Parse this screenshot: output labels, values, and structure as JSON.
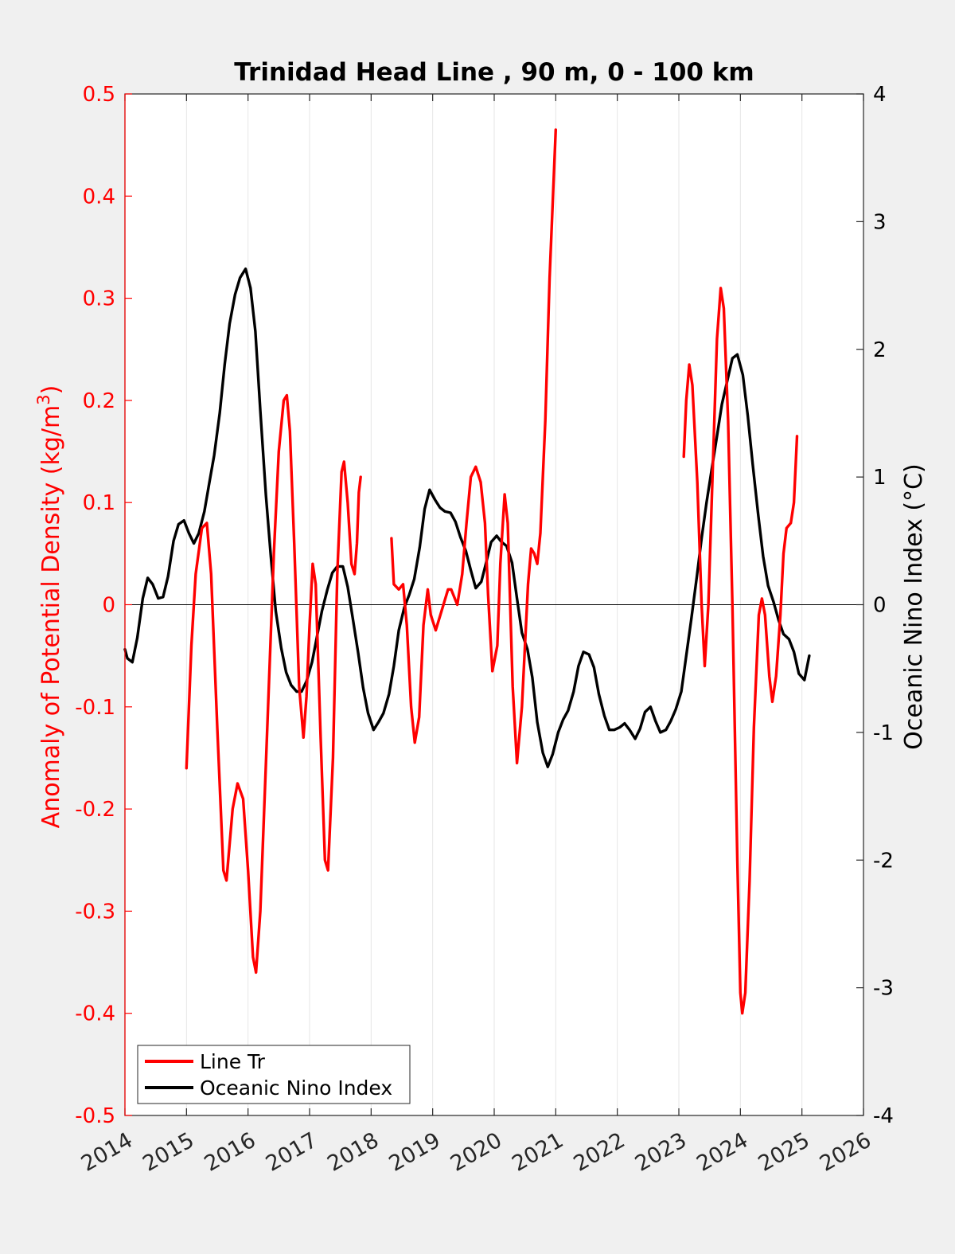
{
  "chart_data": {
    "type": "line",
    "title": "Trinidad Head Line , 90 m, 0 - 100 km",
    "ylabel_left": "Anomaly of Potential Density (kg/m",
    "ylabel_left_sup": "3",
    "ylabel_left_close": ")",
    "ylabel_right": "Oceanic Nino Index (°C)",
    "xlim": [
      2014,
      2026
    ],
    "ylim_left": [
      -0.5,
      0.5
    ],
    "ylim_right": [
      -4,
      4
    ],
    "x_ticks": [
      "2014",
      "2015",
      "2016",
      "2017",
      "2018",
      "2019",
      "2020",
      "2021",
      "2022",
      "2023",
      "2024",
      "2025",
      "2026"
    ],
    "y_ticks_left": [
      "0.5",
      "0.4",
      "0.3",
      "0.2",
      "0.1",
      "0",
      "-0.1",
      "-0.2",
      "-0.3",
      "-0.4",
      "-0.5"
    ],
    "y_ticks_right": [
      "4",
      "3",
      "2",
      "1",
      "0",
      "-1",
      "-2",
      "-3",
      "-4"
    ],
    "grid": "vertical",
    "legend_position": "bottom-left",
    "colors": {
      "line_tr": "#ff0000",
      "oni": "#000000",
      "left_axis": "#ff0000",
      "right_axis": "#000000"
    },
    "series": [
      {
        "name": "Line Tr",
        "axis": "left",
        "segments": [
          [
            [
              2015.0,
              -0.16
            ],
            [
              2015.08,
              -0.04
            ],
            [
              2015.15,
              0.03
            ],
            [
              2015.25,
              0.075
            ],
            [
              2015.33,
              0.08
            ],
            [
              2015.4,
              0.03
            ],
            [
              2015.5,
              -0.12
            ],
            [
              2015.6,
              -0.26
            ],
            [
              2015.65,
              -0.27
            ],
            [
              2015.75,
              -0.2
            ],
            [
              2015.83,
              -0.175
            ],
            [
              2015.92,
              -0.19
            ],
            [
              2016.0,
              -0.26
            ],
            [
              2016.08,
              -0.345
            ],
            [
              2016.13,
              -0.36
            ],
            [
              2016.2,
              -0.3
            ],
            [
              2016.3,
              -0.14
            ],
            [
              2016.42,
              0.05
            ],
            [
              2016.5,
              0.15
            ],
            [
              2016.58,
              0.2
            ],
            [
              2016.63,
              0.205
            ],
            [
              2016.68,
              0.17
            ],
            [
              2016.75,
              0.06
            ],
            [
              2016.83,
              -0.08
            ],
            [
              2016.9,
              -0.13
            ],
            [
              2016.95,
              -0.09
            ],
            [
              2017.0,
              -0.02
            ],
            [
              2017.05,
              0.04
            ],
            [
              2017.1,
              0.02
            ],
            [
              2017.18,
              -0.13
            ],
            [
              2017.25,
              -0.25
            ],
            [
              2017.3,
              -0.26
            ],
            [
              2017.38,
              -0.15
            ],
            [
              2017.45,
              0.03
            ],
            [
              2017.52,
              0.13
            ],
            [
              2017.56,
              0.14
            ],
            [
              2017.62,
              0.1
            ],
            [
              2017.68,
              0.04
            ],
            [
              2017.73,
              0.03
            ],
            [
              2017.77,
              0.06
            ],
            [
              2017.8,
              0.11
            ],
            [
              2017.83,
              0.125
            ]
          ],
          [
            [
              2018.33,
              0.065
            ],
            [
              2018.37,
              0.02
            ],
            [
              2018.45,
              0.015
            ],
            [
              2018.52,
              0.02
            ],
            [
              2018.58,
              -0.02
            ],
            [
              2018.65,
              -0.1
            ],
            [
              2018.71,
              -0.135
            ],
            [
              2018.78,
              -0.11
            ],
            [
              2018.85,
              -0.02
            ],
            [
              2018.92,
              0.015
            ],
            [
              2018.97,
              -0.01
            ],
            [
              2019.05,
              -0.025
            ],
            [
              2019.15,
              -0.005
            ],
            [
              2019.25,
              0.015
            ],
            [
              2019.3,
              0.015
            ],
            [
              2019.4,
              0.0
            ],
            [
              2019.48,
              0.03
            ],
            [
              2019.55,
              0.08
            ],
            [
              2019.62,
              0.125
            ],
            [
              2019.7,
              0.135
            ],
            [
              2019.78,
              0.12
            ],
            [
              2019.85,
              0.08
            ],
            [
              2019.9,
              0.01
            ],
            [
              2019.97,
              -0.065
            ],
            [
              2020.05,
              -0.04
            ],
            [
              2020.1,
              0.04
            ],
            [
              2020.17,
              0.108
            ],
            [
              2020.22,
              0.08
            ],
            [
              2020.3,
              -0.08
            ],
            [
              2020.37,
              -0.155
            ],
            [
              2020.45,
              -0.1
            ],
            [
              2020.55,
              0.02
            ],
            [
              2020.6,
              0.055
            ],
            [
              2020.65,
              0.05
            ],
            [
              2020.7,
              0.04
            ],
            [
              2020.75,
              0.07
            ],
            [
              2020.83,
              0.18
            ],
            [
              2020.9,
              0.32
            ],
            [
              2021.0,
              0.465
            ]
          ],
          [
            [
              2023.08,
              0.145
            ],
            [
              2023.12,
              0.2
            ],
            [
              2023.17,
              0.235
            ],
            [
              2023.22,
              0.215
            ],
            [
              2023.3,
              0.12
            ],
            [
              2023.37,
              0.0
            ],
            [
              2023.42,
              -0.06
            ],
            [
              2023.48,
              0.0
            ],
            [
              2023.55,
              0.13
            ],
            [
              2023.62,
              0.26
            ],
            [
              2023.68,
              0.31
            ],
            [
              2023.73,
              0.29
            ],
            [
              2023.8,
              0.18
            ],
            [
              2023.87,
              0.0
            ],
            [
              2023.95,
              -0.25
            ],
            [
              2024.0,
              -0.38
            ],
            [
              2024.03,
              -0.4
            ],
            [
              2024.08,
              -0.38
            ],
            [
              2024.15,
              -0.27
            ],
            [
              2024.22,
              -0.12
            ],
            [
              2024.3,
              -0.01
            ],
            [
              2024.35,
              0.006
            ],
            [
              2024.4,
              -0.01
            ],
            [
              2024.47,
              -0.07
            ],
            [
              2024.52,
              -0.095
            ],
            [
              2024.58,
              -0.07
            ],
            [
              2024.65,
              -0.01
            ],
            [
              2024.7,
              0.05
            ],
            [
              2024.75,
              0.075
            ],
            [
              2024.82,
              0.08
            ],
            [
              2024.87,
              0.1
            ],
            [
              2024.92,
              0.165
            ]
          ]
        ]
      },
      {
        "name": "Oceanic Nino Index",
        "axis": "right",
        "segments": [
          [
            [
              2014.0,
              -0.35
            ],
            [
              2014.04,
              -0.42
            ],
            [
              2014.12,
              -0.45
            ],
            [
              2014.2,
              -0.26
            ],
            [
              2014.29,
              0.05
            ],
            [
              2014.37,
              0.21
            ],
            [
              2014.45,
              0.16
            ],
            [
              2014.54,
              0.05
            ],
            [
              2014.62,
              0.06
            ],
            [
              2014.7,
              0.22
            ],
            [
              2014.79,
              0.5
            ],
            [
              2014.87,
              0.63
            ],
            [
              2014.96,
              0.66
            ],
            [
              2015.04,
              0.56
            ],
            [
              2015.12,
              0.48
            ],
            [
              2015.2,
              0.56
            ],
            [
              2015.29,
              0.73
            ],
            [
              2015.37,
              0.95
            ],
            [
              2015.45,
              1.17
            ],
            [
              2015.54,
              1.5
            ],
            [
              2015.62,
              1.88
            ],
            [
              2015.7,
              2.2
            ],
            [
              2015.79,
              2.43
            ],
            [
              2015.87,
              2.56
            ],
            [
              2015.96,
              2.63
            ],
            [
              2016.04,
              2.48
            ],
            [
              2016.12,
              2.14
            ],
            [
              2016.2,
              1.52
            ],
            [
              2016.29,
              0.86
            ],
            [
              2016.37,
              0.38
            ],
            [
              2016.45,
              -0.05
            ],
            [
              2016.54,
              -0.34
            ],
            [
              2016.62,
              -0.53
            ],
            [
              2016.7,
              -0.63
            ],
            [
              2016.79,
              -0.68
            ],
            [
              2016.87,
              -0.68
            ],
            [
              2016.95,
              -0.6
            ],
            [
              2017.04,
              -0.45
            ],
            [
              2017.12,
              -0.25
            ],
            [
              2017.2,
              -0.05
            ],
            [
              2017.29,
              0.12
            ],
            [
              2017.37,
              0.25
            ],
            [
              2017.45,
              0.3
            ],
            [
              2017.54,
              0.3
            ],
            [
              2017.62,
              0.14
            ],
            [
              2017.7,
              -0.1
            ],
            [
              2017.79,
              -0.38
            ],
            [
              2017.87,
              -0.65
            ],
            [
              2017.95,
              -0.85
            ],
            [
              2018.04,
              -0.98
            ],
            [
              2018.12,
              -0.92
            ],
            [
              2018.2,
              -0.85
            ],
            [
              2018.29,
              -0.7
            ],
            [
              2018.37,
              -0.48
            ],
            [
              2018.45,
              -0.2
            ],
            [
              2018.54,
              -0.02
            ],
            [
              2018.62,
              0.08
            ],
            [
              2018.7,
              0.2
            ],
            [
              2018.79,
              0.45
            ],
            [
              2018.87,
              0.75
            ],
            [
              2018.95,
              0.9
            ],
            [
              2019.04,
              0.82
            ],
            [
              2019.12,
              0.76
            ],
            [
              2019.2,
              0.73
            ],
            [
              2019.29,
              0.72
            ],
            [
              2019.37,
              0.65
            ],
            [
              2019.45,
              0.53
            ],
            [
              2019.54,
              0.42
            ],
            [
              2019.62,
              0.27
            ],
            [
              2019.7,
              0.13
            ],
            [
              2019.79,
              0.18
            ],
            [
              2019.87,
              0.33
            ],
            [
              2019.95,
              0.49
            ],
            [
              2020.04,
              0.54
            ],
            [
              2020.12,
              0.49
            ],
            [
              2020.2,
              0.46
            ],
            [
              2020.29,
              0.33
            ],
            [
              2020.37,
              0.05
            ],
            [
              2020.45,
              -0.22
            ],
            [
              2020.54,
              -0.35
            ],
            [
              2020.62,
              -0.57
            ],
            [
              2020.7,
              -0.92
            ],
            [
              2020.79,
              -1.16
            ],
            [
              2020.87,
              -1.27
            ],
            [
              2020.95,
              -1.17
            ],
            [
              2021.04,
              -1.0
            ],
            [
              2021.12,
              -0.9
            ],
            [
              2021.2,
              -0.83
            ],
            [
              2021.29,
              -0.68
            ],
            [
              2021.37,
              -0.48
            ],
            [
              2021.45,
              -0.37
            ],
            [
              2021.54,
              -0.39
            ],
            [
              2021.62,
              -0.49
            ],
            [
              2021.7,
              -0.7
            ],
            [
              2021.79,
              -0.87
            ],
            [
              2021.87,
              -0.98
            ],
            [
              2021.95,
              -0.98
            ],
            [
              2022.04,
              -0.96
            ],
            [
              2022.12,
              -0.93
            ],
            [
              2022.2,
              -0.98
            ],
            [
              2022.29,
              -1.05
            ],
            [
              2022.37,
              -0.97
            ],
            [
              2022.45,
              -0.84
            ],
            [
              2022.54,
              -0.8
            ],
            [
              2022.62,
              -0.91
            ],
            [
              2022.7,
              -1.0
            ],
            [
              2022.79,
              -0.98
            ],
            [
              2022.87,
              -0.91
            ],
            [
              2022.95,
              -0.82
            ],
            [
              2023.04,
              -0.68
            ],
            [
              2023.12,
              -0.4
            ],
            [
              2023.2,
              -0.12
            ],
            [
              2023.29,
              0.21
            ],
            [
              2023.37,
              0.52
            ],
            [
              2023.45,
              0.8
            ],
            [
              2023.54,
              1.08
            ],
            [
              2023.62,
              1.32
            ],
            [
              2023.7,
              1.57
            ],
            [
              2023.79,
              1.76
            ],
            [
              2023.87,
              1.93
            ],
            [
              2023.95,
              1.96
            ],
            [
              2024.04,
              1.8
            ],
            [
              2024.12,
              1.48
            ],
            [
              2024.2,
              1.1
            ],
            [
              2024.29,
              0.7
            ],
            [
              2024.37,
              0.38
            ],
            [
              2024.45,
              0.15
            ],
            [
              2024.54,
              0.02
            ],
            [
              2024.62,
              -0.12
            ],
            [
              2024.7,
              -0.23
            ],
            [
              2024.79,
              -0.27
            ],
            [
              2024.87,
              -0.37
            ],
            [
              2024.95,
              -0.54
            ],
            [
              2025.04,
              -0.59
            ],
            [
              2025.12,
              -0.4
            ]
          ]
        ]
      }
    ]
  }
}
